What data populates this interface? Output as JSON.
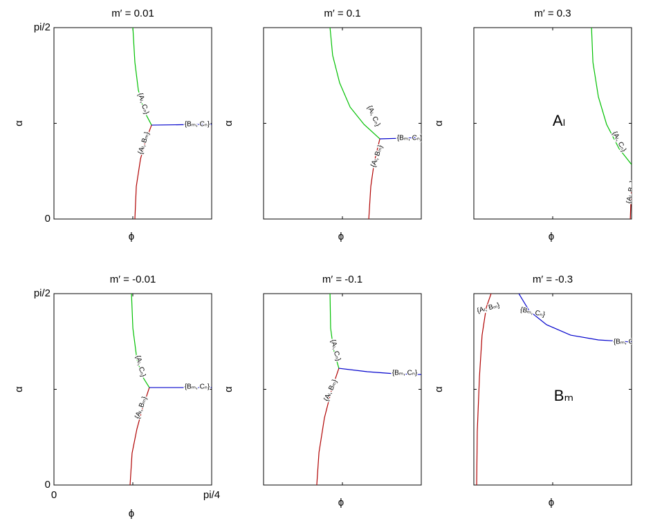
{
  "chart_data": [
    {
      "type": "line",
      "title": "m′ = 0.01",
      "xlabel": "ϕ",
      "ylabel": "α",
      "xlim": [
        0,
        0.7854
      ],
      "ylim": [
        0,
        1.5708
      ],
      "xticks": [
        {
          "value": 0.3927,
          "label": null
        }
      ],
      "yticks": [
        0,
        {
          "value": 1.5708,
          "label": "pi/2"
        },
        {
          "value": 0.7854,
          "label": null
        }
      ],
      "series": [
        {
          "color": "#00c000",
          "x": [
            0.393,
            0.403,
            0.42,
            0.448,
            0.486
          ],
          "values": [
            1.571,
            1.287,
            1.06,
            0.89,
            0.771
          ]
        },
        {
          "color": "#b00000",
          "x": [
            0.403,
            0.41,
            0.431,
            0.455,
            0.486
          ],
          "values": [
            0,
            0.267,
            0.493,
            0.635,
            0.771
          ]
        },
        {
          "color": "#0000cc",
          "x": [
            0.486,
            0.627,
            0.785
          ],
          "values": [
            0.771,
            0.774,
            0.777
          ]
        }
      ],
      "annotations": [
        "{Aₗ, Cₙ}",
        "{Aₗ, Bₘ}",
        "{Bₘ, Cₙ}"
      ]
    },
    {
      "type": "line",
      "title": "m′ = 0.1",
      "xlabel": "ϕ",
      "ylabel": "α",
      "xlim": [
        0,
        0.7854
      ],
      "ylim": [
        0,
        1.5708
      ],
      "xticks": [
        {
          "value": 0.3927,
          "label": null
        }
      ],
      "yticks": [
        {
          "value": 0.7854,
          "label": null
        }
      ],
      "series": [
        {
          "color": "#00c000",
          "x": [
            0.331,
            0.344,
            0.379,
            0.431,
            0.5,
            0.579
          ],
          "values": [
            1.571,
            1.344,
            1.117,
            0.919,
            0.777,
            0.658
          ]
        },
        {
          "color": "#b00000",
          "x": [
            0.524,
            0.534,
            0.551,
            0.579
          ],
          "values": [
            0,
            0.267,
            0.465,
            0.658
          ]
        },
        {
          "color": "#0000cc",
          "x": [
            0.579,
            0.689,
            0.785
          ],
          "values": [
            0.658,
            0.663,
            0.669
          ]
        }
      ],
      "annotations": [
        "{Aₗ, Cₙ}",
        "{Aₗ, Bₘ}",
        "{Bₘ, Cₙ}"
      ]
    },
    {
      "type": "line",
      "title": "m′ = 0.3",
      "xlabel": "ϕ",
      "ylabel": "α",
      "xlim": [
        0,
        0.7854
      ],
      "ylim": [
        0,
        1.5708
      ],
      "xticks": [
        {
          "value": 0.3927,
          "label": null
        }
      ],
      "yticks": [
        {
          "value": 0.7854,
          "label": null
        }
      ],
      "series": [
        {
          "color": "#00c000",
          "x": [
            0.586,
            0.593,
            0.62,
            0.661,
            0.723,
            0.785
          ],
          "values": [
            1.571,
            1.287,
            1.004,
            0.777,
            0.578,
            0.448
          ]
        },
        {
          "color": "#b00000",
          "x": [
            0.779,
            0.785
          ],
          "values": [
            0,
            0.267
          ]
        }
      ],
      "annotations": [
        "{Aₗ, Cₙ}",
        "{Aₗ, Bₘ}",
        "Aₗ"
      ]
    },
    {
      "type": "line",
      "title": "m′ = -0.01",
      "xlabel": "ϕ",
      "ylabel": "α",
      "xlim": [
        0,
        0.7854
      ],
      "ylim": [
        0,
        1.5708
      ],
      "xticks": [
        0,
        {
          "value": 0.7854,
          "label": "pi/4"
        },
        {
          "value": 0.3927,
          "label": null
        }
      ],
      "yticks": [
        0,
        {
          "value": 1.5708,
          "label": "pi/2"
        },
        {
          "value": 0.7854,
          "label": null
        }
      ],
      "series": [
        {
          "color": "#00c000",
          "x": [
            0.386,
            0.393,
            0.413,
            0.441,
            0.475
          ],
          "values": [
            1.571,
            1.287,
            1.032,
            0.89,
            0.8
          ]
        },
        {
          "color": "#b00000",
          "x": [
            0.379,
            0.389,
            0.413,
            0.441,
            0.475
          ],
          "values": [
            0,
            0.261,
            0.459,
            0.629,
            0.8
          ]
        },
        {
          "color": "#0000cc",
          "x": [
            0.475,
            0.785
          ],
          "values": [
            0.8,
            0.8
          ]
        }
      ],
      "annotations": [
        "{Aₗ, Cₙ}",
        "{Aₗ, Bₘ}",
        "{Bₘ, Cₙ}"
      ]
    },
    {
      "type": "line",
      "title": "m′ = -0.1",
      "xlabel": "ϕ",
      "ylabel": "α",
      "xlim": [
        0,
        0.7854
      ],
      "ylim": [
        0,
        1.5708
      ],
      "xticks": [
        {
          "value": 0.3927,
          "label": null
        }
      ],
      "yticks": [
        {
          "value": 0.7854,
          "label": null
        }
      ],
      "series": [
        {
          "color": "#00c000",
          "x": [
            0.331,
            0.334,
            0.348,
            0.375
          ],
          "values": [
            1.571,
            1.287,
            1.117,
            0.958
          ]
        },
        {
          "color": "#b00000",
          "x": [
            0.265,
            0.276,
            0.303,
            0.338,
            0.375
          ],
          "values": [
            0,
            0.267,
            0.55,
            0.777,
            0.958
          ]
        },
        {
          "color": "#0000cc",
          "x": [
            0.375,
            0.517,
            0.655,
            0.785
          ],
          "values": [
            0.958,
            0.93,
            0.913,
            0.907
          ]
        }
      ],
      "annotations": [
        "{Aₗ, Cₙ}",
        "{Aₗ, Bₘ}",
        "{Bₘ, Cₙ}"
      ]
    },
    {
      "type": "line",
      "title": "m′ = -0.3",
      "xlabel": "ϕ",
      "ylabel": "α",
      "xlim": [
        0,
        0.7854
      ],
      "ylim": [
        0,
        1.5708
      ],
      "xticks": [
        {
          "value": 0.3927,
          "label": null
        }
      ],
      "yticks": [
        {
          "value": 0.7854,
          "label": null
        }
      ],
      "series": [
        {
          "color": "#b00000",
          "x": [
            0.014,
            0.017,
            0.028,
            0.041,
            0.062,
            0.086
          ],
          "values": [
            0,
            0.437,
            0.89,
            1.23,
            1.457,
            1.571
          ]
        },
        {
          "color": "#0000cc",
          "x": [
            0.224,
            0.276,
            0.362,
            0.482,
            0.62,
            0.785
          ],
          "values": [
            1.571,
            1.429,
            1.316,
            1.23,
            1.191,
            1.174
          ]
        }
      ],
      "annotations": [
        "{Aₗ, Bₘ}",
        "{Bₘ, Cₙ}",
        "{Bₘ, Cₙ}",
        "Bₘ"
      ]
    }
  ]
}
